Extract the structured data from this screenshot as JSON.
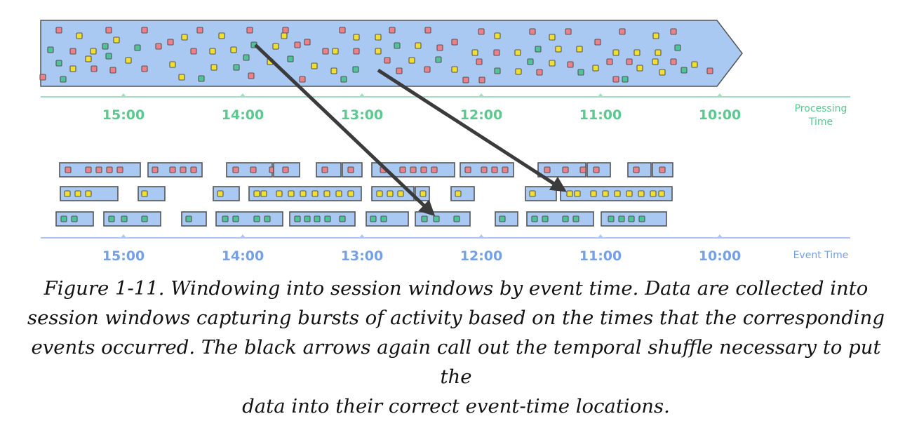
{
  "colors": {
    "event_red": "#f07f8a",
    "event_yellow": "#f2e030",
    "event_green": "#4fc49a",
    "band_fill": "#a9c8f2",
    "band_stroke": "#555555",
    "processing_axis": "#9fe0c2",
    "processing_text": "#5bc98f",
    "event_axis": "#aec6f2",
    "event_text": "#73a0e8",
    "arrow": "#3b3b3b"
  },
  "processing_axis": {
    "name_line1": "Processing",
    "name_line2": "Time",
    "ticks": [
      "15:00",
      "14:00",
      "13:00",
      "12:00",
      "11:00",
      "10:00"
    ]
  },
  "event_axis": {
    "name": "Event Time",
    "ticks": [
      "15:00",
      "14:00",
      "13:00",
      "12:00",
      "11:00",
      "10:00"
    ]
  },
  "caption": {
    "line1": "Figure 1-11. Windowing into session windows by event time. Data are collected into",
    "line2": "session windows capturing bursts of activity based on the times that the corresponding",
    "line3": "events occurred. The black arrows again call out the temporal shuffle necessary to put the",
    "line4": "data into their correct event-time locations."
  }
}
